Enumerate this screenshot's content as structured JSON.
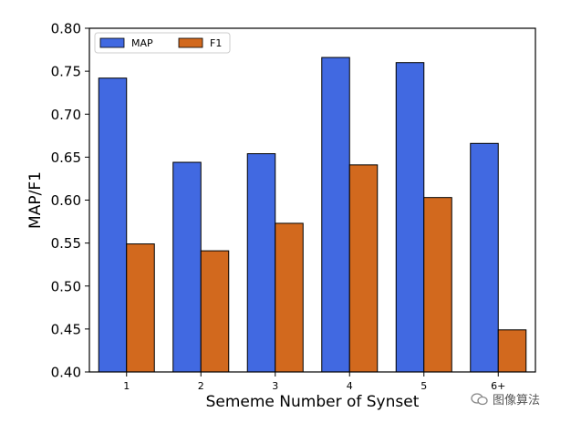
{
  "chart_data": {
    "type": "bar",
    "categories": [
      "1",
      "2",
      "3",
      "4",
      "5",
      "6+"
    ],
    "series": [
      {
        "name": "MAP",
        "color": "#4169e1",
        "values": [
          0.742,
          0.644,
          0.654,
          0.766,
          0.76,
          0.666
        ]
      },
      {
        "name": "F1",
        "color": "#d2691e",
        "values": [
          0.549,
          0.541,
          0.573,
          0.641,
          0.603,
          0.449
        ]
      }
    ],
    "title": "",
    "xlabel": "Sememe Number of Synset",
    "ylabel": "MAP/F1",
    "ylim": [
      0.4,
      0.8
    ],
    "yticks": [
      "0.40",
      "0.45",
      "0.50",
      "0.55",
      "0.60",
      "0.65",
      "0.70",
      "0.75",
      "0.80"
    ],
    "legend_position": "top-left",
    "grid": false
  },
  "watermark": {
    "text": "图像算法",
    "icon": "wechat-icon"
  }
}
